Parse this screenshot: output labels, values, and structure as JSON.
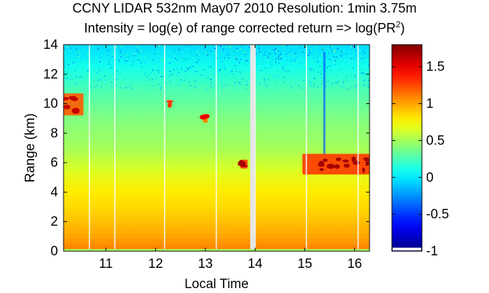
{
  "chart_data": {
    "type": "heatmap",
    "title_line1": "CCNY LIDAR 532nm May07 2010 Resolution: 1min 3.75m",
    "title_line2_prefix": "Intensity = log(e) of range corrected return => log(PR",
    "title_line2_sup": "2",
    "title_line2_suffix": ")",
    "xlabel": "Local Time",
    "ylabel": "Range (km)",
    "xlim": [
      10.15,
      16.3
    ],
    "ylim": [
      0,
      14
    ],
    "xticks": [
      11,
      12,
      13,
      14,
      15,
      16
    ],
    "yticks": [
      0,
      2,
      4,
      6,
      8,
      10,
      12,
      14
    ],
    "colorbar": {
      "clim": [
        -1,
        1.8
      ],
      "ticks": [
        -1,
        -0.5,
        0,
        0.5,
        1,
        1.5
      ],
      "colormap": "jet"
    },
    "data_gaps_time": [
      10.67,
      11.18,
      12.18,
      13.22,
      14.0,
      15.03,
      16.07
    ],
    "wide_gap": [
      13.9,
      14.0
    ],
    "background_profile": [
      {
        "range": 0.0,
        "value": 0.85
      },
      {
        "range": 0.1,
        "value": 1.1
      },
      {
        "range": 1.0,
        "value": 1.0
      },
      {
        "range": 3.0,
        "value": 0.85
      },
      {
        "range": 4.0,
        "value": 0.8
      },
      {
        "range": 5.5,
        "value": 0.65
      },
      {
        "range": 7.0,
        "value": 0.5
      },
      {
        "range": 9.0,
        "value": 0.4
      },
      {
        "range": 11.0,
        "value": 0.25
      },
      {
        "range": 12.5,
        "value": 0.1
      },
      {
        "range": 14.0,
        "value": -0.05
      }
    ],
    "cloud_features": [
      {
        "time_start": 10.15,
        "time_end": 10.55,
        "range_low": 9.2,
        "range_high": 10.7,
        "value": 1.6
      },
      {
        "time_start": 13.7,
        "time_end": 13.85,
        "range_low": 5.6,
        "range_high": 6.2,
        "value": 1.7
      },
      {
        "time_start": 14.95,
        "time_end": 16.3,
        "range_low": 5.2,
        "range_high": 6.6,
        "value": 1.7
      },
      {
        "time_start": 12.95,
        "time_end": 13.05,
        "range_low": 8.7,
        "range_high": 9.3,
        "value": 1.5
      },
      {
        "time_start": 12.28,
        "time_end": 12.3,
        "range_low": 9.8,
        "range_high": 10.3,
        "value": 1.3
      }
    ]
  }
}
